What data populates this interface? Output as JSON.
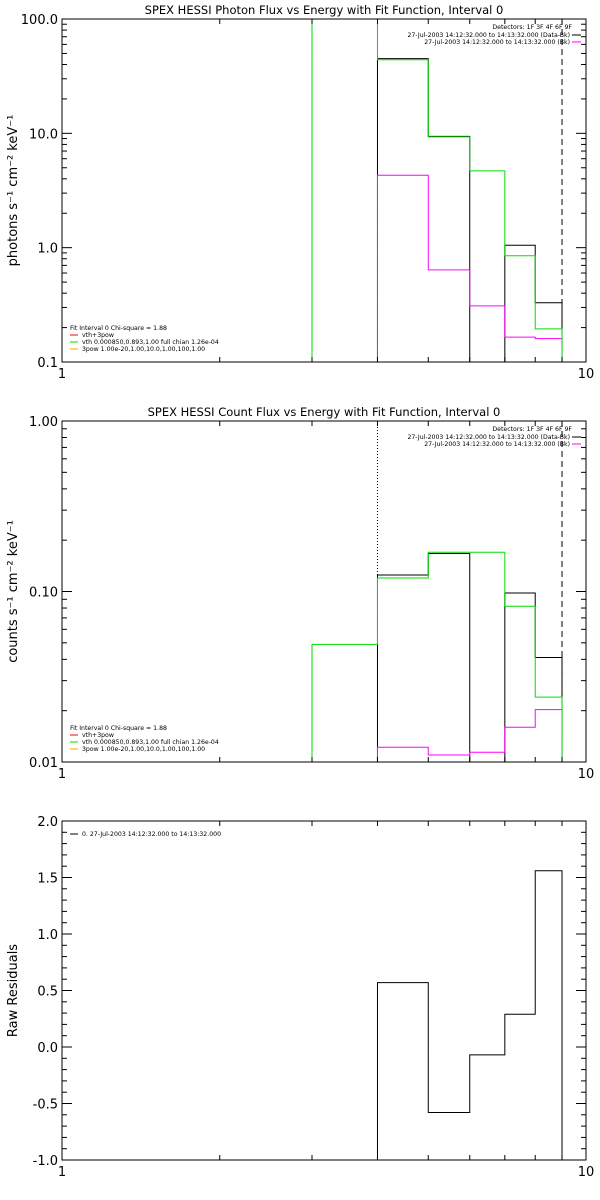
{
  "chart_data": [
    {
      "type": "line",
      "title": "SPEX HESSI Photon Flux vs Energy with Fit Function, Interval 0",
      "ylabel": "photons s⁻¹ cm⁻² keV⁻¹",
      "xlabel": "",
      "xscale": "log",
      "yscale": "log",
      "xlim": [
        1,
        10
      ],
      "ylim": [
        0.1,
        100
      ],
      "x_ticks": [
        {
          "v": 1,
          "label": "1"
        },
        {
          "v": 10,
          "label": "10"
        }
      ],
      "y_ticks": [
        {
          "v": 0.1,
          "label": "0.1"
        },
        {
          "v": 1,
          "label": "1.0"
        },
        {
          "v": 10,
          "label": "10.0"
        },
        {
          "v": 100,
          "label": "100.0"
        }
      ],
      "edges": [
        3,
        4,
        5,
        6,
        7,
        8,
        9
      ],
      "vlines": [
        {
          "x": 4,
          "style": "dotted",
          "color": "#000000"
        },
        {
          "x": 9,
          "style": "dashed",
          "color": "#000000"
        }
      ],
      "series": [
        {
          "name": "27-Jul-2003 14:12:32.000 to 14:13:32.000 (Data-Bk)",
          "color": "#000000",
          "values": [
            null,
            45,
            9.4,
            null,
            1.05,
            0.33
          ]
        },
        {
          "name": "27-Jul-2003 14:12:32.000 to 14:13:32.000 (Bk)",
          "color": "#ff00ff",
          "values": [
            null,
            4.3,
            0.64,
            0.31,
            0.165,
            0.16
          ]
        },
        {
          "name": "vth+3pow",
          "color": "#00dd00",
          "values": [
            200,
            44,
            9.3,
            4.7,
            0.85,
            0.195
          ]
        }
      ],
      "detectors": "Detectors: 1F 3F 4F 6F 9F",
      "legend_right": [
        {
          "text": "27-Jul-2003 14:12:32.000 to 14:13:32.000 (Data-Bk)",
          "color": "#000000"
        },
        {
          "text": "27-Jul-2003 14:12:32.000 to 14:13:32.000 (Bk)",
          "color": "#ff00ff"
        }
      ],
      "legend_left_header": "Fit Interval 0   Chi-square = 1.88",
      "legend_left": [
        {
          "text": "vth+3pow",
          "color": "#ff0000"
        },
        {
          "text": "vth 0.000850,0.893,1.00  full chian 1.26e-04",
          "color": "#00dd00"
        },
        {
          "text": "3pow 1.00e-20,1.00,10.0,1.00,100,1.00",
          "color": "#ffaa00"
        }
      ]
    },
    {
      "type": "line",
      "title": "SPEX HESSI Count Flux vs Energy with Fit Function, Interval 0",
      "ylabel": "counts s⁻¹ cm⁻² keV⁻¹",
      "xlabel": "",
      "xscale": "log",
      "yscale": "log",
      "xlim": [
        1,
        10
      ],
      "ylim": [
        0.01,
        1
      ],
      "x_ticks": [
        {
          "v": 1,
          "label": "1"
        },
        {
          "v": 10,
          "label": "10"
        }
      ],
      "y_ticks": [
        {
          "v": 0.01,
          "label": "0.01"
        },
        {
          "v": 0.1,
          "label": "0.10"
        },
        {
          "v": 1,
          "label": "1.00"
        }
      ],
      "edges": [
        3,
        4,
        5,
        6,
        7,
        8,
        9
      ],
      "vlines": [
        {
          "x": 4,
          "style": "dotted",
          "color": "#000000"
        },
        {
          "x": 9,
          "style": "dashed",
          "color": "#000000"
        }
      ],
      "series": [
        {
          "name": "27-Jul-2003 14:12:32.000 to 14:13:32.000 (Data-Bk)",
          "color": "#000000",
          "values": [
            null,
            0.125,
            0.167,
            null,
            0.098,
            0.041
          ]
        },
        {
          "name": "27-Jul-2003 14:12:32.000 to 14:13:32.000 (Bk)",
          "color": "#ff00ff",
          "values": [
            null,
            0.0122,
            0.011,
            0.0114,
            0.016,
            0.0203
          ]
        },
        {
          "name": "vth+3pow",
          "color": "#00dd00",
          "values": [
            0.049,
            0.12,
            0.17,
            0.17,
            0.082,
            0.024
          ]
        }
      ],
      "detectors": "Detectors: 1F 3F 4F 6F 9F",
      "legend_right": [
        {
          "text": "27-Jul-2003 14:12:32.000 to 14:13:32.000 (Data-Bk)",
          "color": "#000000"
        },
        {
          "text": "27-Jul-2003 14:12:32.000 to 14:13:32.000 (Bk)",
          "color": "#ff00ff"
        }
      ],
      "legend_left_header": "Fit Interval 0   Chi-square = 1.88",
      "legend_left": [
        {
          "text": "vth+3pow",
          "color": "#ff0000"
        },
        {
          "text": "vth 0.000850,0.893,1.00  full chian 1.26e-04",
          "color": "#00dd00"
        },
        {
          "text": "3pow 1.00e-20,1.00,10.0,1.00,100,1.00",
          "color": "#ffaa00"
        }
      ]
    },
    {
      "type": "line",
      "title": "",
      "ylabel": "Raw Residuals",
      "xlabel": "",
      "xscale": "log",
      "yscale": "linear",
      "xlim": [
        1,
        10
      ],
      "ylim": [
        -1,
        2
      ],
      "x_ticks": [
        {
          "v": 1,
          "label": "1"
        },
        {
          "v": 10,
          "label": "10"
        }
      ],
      "y_ticks": [
        {
          "v": -1,
          "label": "-1.0"
        },
        {
          "v": -0.5,
          "label": "-0.5"
        },
        {
          "v": 0,
          "label": "0.0"
        },
        {
          "v": 0.5,
          "label": "0.5"
        },
        {
          "v": 1,
          "label": "1.0"
        },
        {
          "v": 1.5,
          "label": "1.5"
        },
        {
          "v": 2,
          "label": "2.0"
        }
      ],
      "edges": [
        4,
        5,
        6,
        7,
        8,
        9
      ],
      "vlines": [],
      "series": [
        {
          "name": "0. 27-Jul-2003 14:12:32.000 to 14:13:32.000",
          "color": "#000000",
          "values": [
            0.57,
            -0.58,
            -0.07,
            0.29,
            1.56
          ]
        }
      ],
      "legend_left_top": [
        {
          "text": "0. 27-Jul-2003 14:12:32.000 to 14:13:32.000",
          "color": "#000000"
        }
      ]
    }
  ]
}
